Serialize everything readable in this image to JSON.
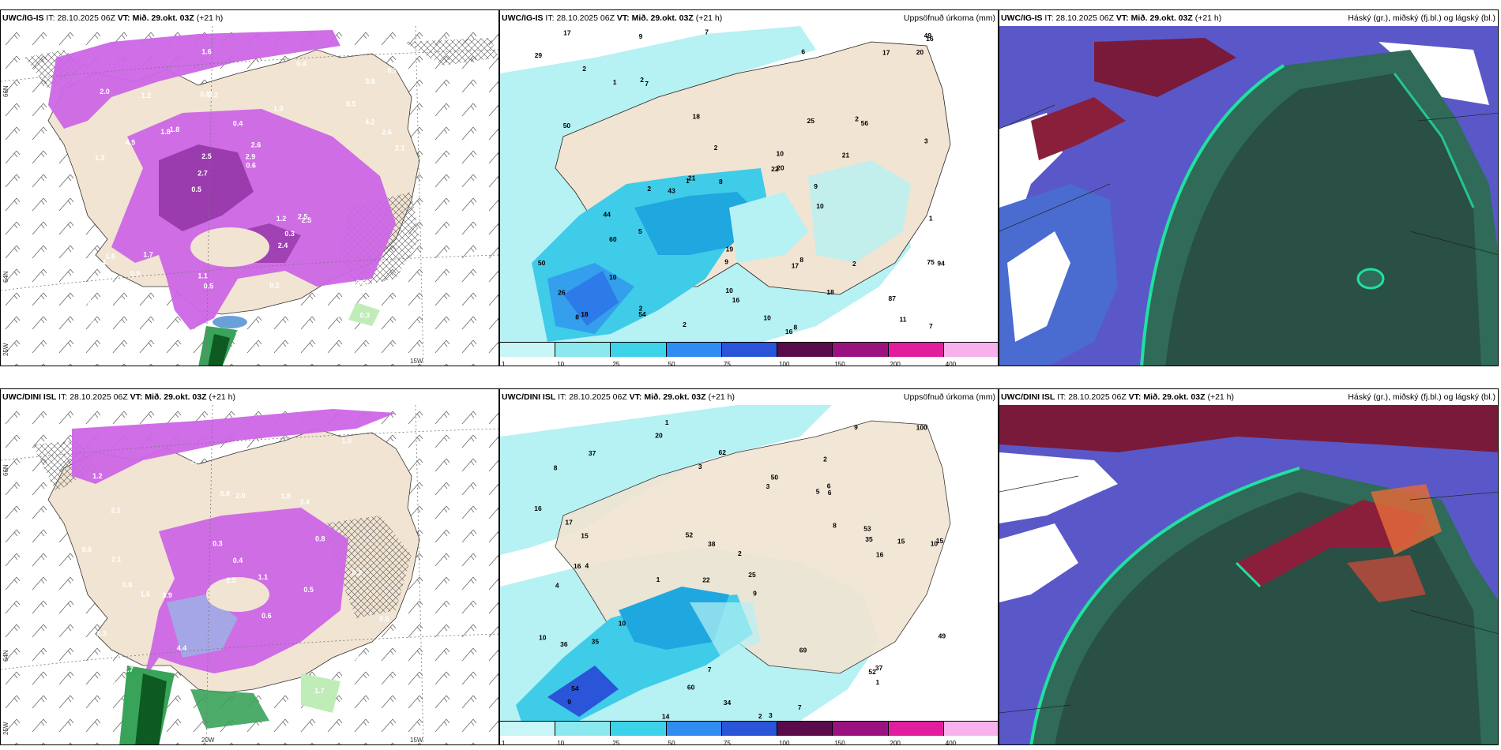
{
  "panels": {
    "a": {
      "model": "UWC/IG-IS",
      "it_label": "IT:",
      "it_value": "28.10.2025 06Z",
      "vt_label": "VT:",
      "vt_value": "Mið. 29.okt. 03Z",
      "lead": "(+21 h)",
      "right_title": ""
    },
    "b": {
      "model": "UWC/IG-IS",
      "it_label": "IT:",
      "it_value": "28.10.2025 06Z",
      "vt_label": "VT:",
      "vt_value": "Mið. 29.okt. 03Z",
      "lead": "(+21 h)",
      "right_title": "Uppsöfnuð úrkoma (mm)"
    },
    "c": {
      "model": "UWC/IG-IS",
      "it_label": "IT:",
      "it_value": "28.10.2025 06Z",
      "vt_label": "VT:",
      "vt_value": "Mið. 29.okt. 03Z",
      "lead": "(+21 h)",
      "right_title": "Háský (gr.), miðský (fj.bl.) og lágský (bl.)"
    },
    "d": {
      "model": "UWC/DINI ISL",
      "it_label": "IT:",
      "it_value": "28.10.2025 06Z",
      "vt_label": "VT:",
      "vt_value": "Mið. 29.okt. 03Z",
      "lead": "(+21 h)",
      "right_title": ""
    },
    "e": {
      "model": "UWC/DINI ISL",
      "it_label": "IT:",
      "it_value": "28.10.2025 06Z",
      "vt_label": "VT:",
      "vt_value": "Mið. 29.okt. 03Z",
      "lead": "(+21 h)",
      "right_title": "Uppsöfnuð úrkoma (mm)"
    },
    "f": {
      "model": "UWC/DINI ISL",
      "it_label": "IT:",
      "it_value": "28.10.2025 06Z",
      "vt_label": "VT:",
      "vt_value": "Mið. 29.okt. 03Z",
      "lead": "(+21 h)",
      "right_title": "Háský (gr.), miðský (fj.bl.) og lágský (bl.)"
    }
  },
  "axes": {
    "lat66": "66N",
    "lat64": "64N",
    "lon25": "25W",
    "lon20": "20W",
    "lon15": "15W"
  },
  "colorbar": {
    "ticks": [
      "1",
      "10",
      "25",
      "50",
      "75",
      "100",
      "150",
      "200",
      "400"
    ],
    "colors": [
      "#c8f5f5",
      "#8ce8ef",
      "#3cd2ea",
      "#2f8cf0",
      "#2b55d8",
      "#5a0c4a",
      "#9a1280",
      "#e01e9e",
      "#f7b2ee"
    ]
  },
  "colors": {
    "land": "#f1e4d2",
    "precip_light": "#b6f1f3",
    "precip_mid": "#3fcce8",
    "precip_high": "#1fa7e0",
    "magenta": "#cc66e6",
    "magenta_dark": "#8c2fa0",
    "cloud_high": "#7a1a3a",
    "cloud_mid": "#4a6bd0",
    "cloud_low": "#2a5a4c"
  },
  "map_a_values": [
    "0.3",
    "1.3",
    "3.8",
    "0.5",
    "1.0",
    "0.7",
    "0.8",
    "0.4",
    "1.6",
    "1.8",
    "2.8",
    "1.9",
    "2.2",
    "2.6",
    "2.5",
    "2.0",
    "1.6",
    "2.1",
    "1.2",
    "4.2",
    "2.7",
    "1.1",
    "2.5",
    "1.2",
    "0.4",
    "1.7",
    "2.3",
    "3.6",
    "2.5",
    "3.2",
    "1.8",
    "4.5",
    "2.4",
    "0.6",
    "2.6",
    "2.9",
    "0.5",
    "0.5",
    "0.6",
    "0.4",
    "0.5",
    "0.7",
    "0.3",
    "0.2",
    "0.9",
    "1.4"
  ],
  "map_b_values": [
    "2",
    "16",
    "2",
    "18",
    "9",
    "2",
    "2",
    "11",
    "7",
    "18",
    "17",
    "16",
    "21",
    "9",
    "6",
    "22",
    "50",
    "54",
    "43",
    "29",
    "17",
    "16",
    "10",
    "8",
    "56",
    "44",
    "50",
    "60",
    "17",
    "10",
    "8",
    "8",
    "19",
    "20",
    "10",
    "9",
    "75",
    "26",
    "25",
    "87",
    "20",
    "21",
    "94",
    "18",
    "7",
    "8",
    "1",
    "10",
    "1",
    "10",
    "49",
    "3",
    "7",
    "2",
    "5",
    "2",
    "1",
    "2",
    "2"
  ],
  "map_d_values": [
    "0.4",
    "0.8",
    "0.6",
    "1.2",
    "1.9",
    "2.1",
    "2.7",
    "3.9",
    "3.4",
    "5.8",
    "1.8",
    "1.7",
    "4.4",
    "2.0",
    "1.1",
    "1.3",
    "0.5",
    "0.4",
    "0.6",
    "2.0",
    "1.0",
    "2.0",
    "0.8",
    "0.5",
    "0.2",
    "2.1",
    "1.6",
    "2.5",
    "0.3"
  ],
  "map_e_values": [
    "1",
    "2",
    "10",
    "22",
    "9",
    "4",
    "8",
    "5",
    "4",
    "3",
    "2",
    "9",
    "20",
    "1",
    "2",
    "3",
    "7",
    "9",
    "8",
    "10",
    "15",
    "16",
    "15",
    "15",
    "10",
    "17",
    "38",
    "35",
    "37",
    "36",
    "52",
    "50",
    "35",
    "52",
    "69",
    "49",
    "53",
    "60",
    "100",
    "62",
    "54",
    "14",
    "7",
    "37",
    "34",
    "6",
    "1",
    "6",
    "16",
    "25",
    "3",
    "16"
  ]
}
